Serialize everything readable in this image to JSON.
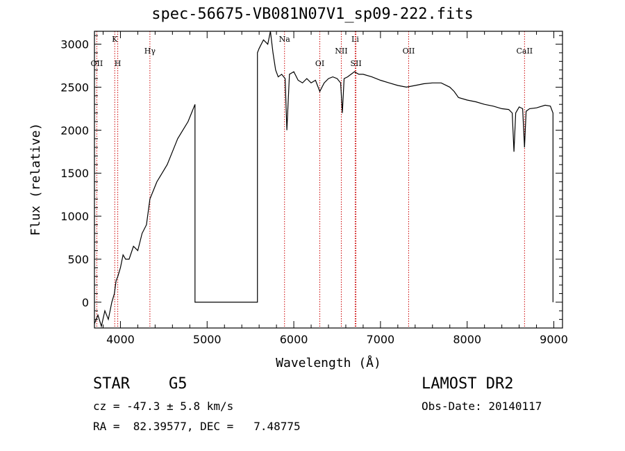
{
  "chart_data": {
    "type": "line",
    "title": "spec-56675-VB081N07V1_sp09-222.fits",
    "xlabel": "Wavelength (Å)",
    "ylabel": "Flux (relative)",
    "xlim": [
      3700,
      9100
    ],
    "ylim": [
      -300,
      3150
    ],
    "xticks": [
      4000,
      5000,
      6000,
      7000,
      8000,
      9000
    ],
    "yticks": [
      0,
      500,
      1000,
      1500,
      2000,
      2500,
      3000
    ],
    "grid": false,
    "line_color": "#000000",
    "marker_color": "#cc0000",
    "series": [
      {
        "x": [
          3700,
          3740,
          3780,
          3820,
          3860,
          3900,
          3930,
          3950,
          3970,
          4000,
          4030,
          4060,
          4100,
          4150,
          4200,
          4250,
          4300,
          4340,
          4380,
          4420,
          4480,
          4540,
          4600,
          4660,
          4720,
          4780,
          4820,
          4860,
          4860,
          5580,
          5580,
          5600,
          5650,
          5700,
          5730,
          5760,
          5790,
          5820,
          5860,
          5900,
          5920,
          5950,
          6000,
          6050,
          6100,
          6150,
          6200,
          6250,
          6300,
          6350,
          6400,
          6450,
          6500,
          6540,
          6560,
          6580,
          6620,
          6660,
          6700,
          6750,
          6800,
          6900,
          7000,
          7100,
          7200,
          7300,
          7400,
          7500,
          7600,
          7700,
          7800,
          7850,
          7900,
          8000,
          8100,
          8200,
          8300,
          8400,
          8480,
          8520,
          8540,
          8560,
          8600,
          8640,
          8662,
          8680,
          8720,
          8800,
          8900,
          8960,
          8990,
          8990
        ],
        "y": [
          -250,
          -150,
          -280,
          -100,
          -200,
          0,
          100,
          250,
          300,
          400,
          550,
          500,
          500,
          650,
          600,
          800,
          900,
          1200,
          1300,
          1400,
          1500,
          1600,
          1750,
          1900,
          2000,
          2100,
          2200,
          2300,
          0,
          0,
          2900,
          2950,
          3050,
          3000,
          3150,
          2900,
          2700,
          2620,
          2650,
          2600,
          2000,
          2650,
          2680,
          2580,
          2550,
          2600,
          2550,
          2580,
          2450,
          2550,
          2600,
          2620,
          2600,
          2550,
          2200,
          2600,
          2620,
          2650,
          2680,
          2650,
          2650,
          2620,
          2580,
          2550,
          2520,
          2500,
          2520,
          2540,
          2550,
          2550,
          2500,
          2450,
          2380,
          2350,
          2330,
          2300,
          2280,
          2250,
          2240,
          2200,
          1750,
          2200,
          2270,
          2250,
          1800,
          2220,
          2250,
          2260,
          2290,
          2280,
          2200,
          0
        ]
      }
    ],
    "line_markers": [
      {
        "label": "OII",
        "x": 3727,
        "row": 2
      },
      {
        "label": "K",
        "x": 3934,
        "row": 1
      },
      {
        "label": "H",
        "x": 3969,
        "row": 2
      },
      {
        "label": "Hγ",
        "x": 4340,
        "row": 3
      },
      {
        "label": "Na",
        "x": 5893,
        "row": 1
      },
      {
        "label": "OI",
        "x": 6300,
        "row": 2
      },
      {
        "label": "NII",
        "x": 6548,
        "row": 3
      },
      {
        "label": "Li",
        "x": 6708,
        "row": 1
      },
      {
        "label": "SII",
        "x": 6717,
        "row": 2
      },
      {
        "label": "OII",
        "x": 7325,
        "row": 3
      },
      {
        "label": "CaII",
        "x": 8662,
        "row": 3
      }
    ]
  },
  "info": {
    "object_class": "STAR",
    "subclass": "G5",
    "cz": "cz = -47.3 ± 5.8 km/s",
    "coords": "RA =  82.39577, DEC =   7.48775",
    "survey": "LAMOST DR2",
    "obs_date": "Obs-Date: 20140117"
  }
}
